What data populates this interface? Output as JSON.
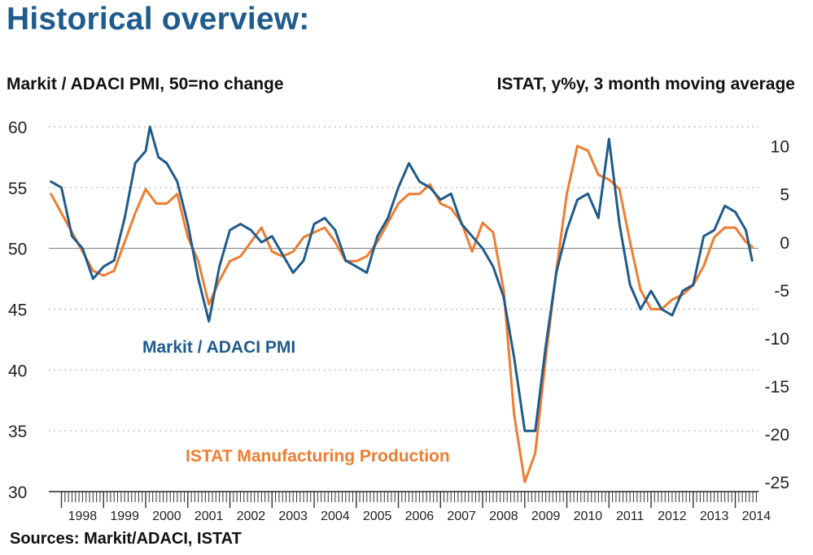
{
  "title": "Historical overview:",
  "source": "Sources: Markit/ADACI, ISTAT",
  "colors": {
    "pmi": "#1f5b8c",
    "istat": "#ee7d31",
    "title": "#1f5b8c"
  },
  "chart_data": {
    "type": "line",
    "left_axis": {
      "label": "Markit / ADACI PMI, 50=no change",
      "ylim": [
        30,
        60
      ],
      "ticks": [
        30,
        35,
        40,
        45,
        50,
        55,
        60
      ]
    },
    "right_axis": {
      "label": "ISTAT, y%y, 3 month moving average",
      "ylim": [
        -26,
        12
      ],
      "ticks": [
        10,
        5,
        0,
        -5,
        -10,
        -15,
        -20,
        -25
      ]
    },
    "x_tick_labels": [
      "1998",
      "1999",
      "2000",
      "2001",
      "2002",
      "2003",
      "2004",
      "2005",
      "2006",
      "2007",
      "2008",
      "2009",
      "2010",
      "2011",
      "2012",
      "2013",
      "2014"
    ],
    "grid": "horizontal dotted",
    "reference_line": {
      "axis": "left",
      "value": 50
    },
    "series": [
      {
        "name": "Markit / ADACI PMI",
        "axis": "left",
        "x": [
          1997.75,
          1998.0,
          1998.25,
          1998.5,
          1998.75,
          1999.0,
          1999.25,
          1999.5,
          1999.75,
          2000.0,
          2000.1,
          2000.3,
          2000.5,
          2000.75,
          2001.0,
          2001.25,
          2001.5,
          2001.75,
          2002.0,
          2002.25,
          2002.5,
          2002.75,
          2003.0,
          2003.25,
          2003.5,
          2003.75,
          2004.0,
          2004.25,
          2004.5,
          2004.75,
          2005.0,
          2005.25,
          2005.5,
          2005.75,
          2006.0,
          2006.25,
          2006.5,
          2006.75,
          2007.0,
          2007.25,
          2007.5,
          2007.75,
          2008.0,
          2008.25,
          2008.5,
          2008.75,
          2009.0,
          2009.25,
          2009.5,
          2009.75,
          2010.0,
          2010.25,
          2010.5,
          2010.75,
          2011.0,
          2011.25,
          2011.5,
          2011.75,
          2012.0,
          2012.25,
          2012.5,
          2012.75,
          2013.0,
          2013.25,
          2013.5,
          2013.75,
          2014.0,
          2014.25,
          2014.4
        ],
        "values": [
          55.5,
          55.0,
          51.0,
          50.0,
          47.5,
          48.5,
          49.0,
          52.5,
          57.0,
          58.0,
          60.0,
          57.5,
          57.0,
          55.5,
          52.0,
          47.5,
          44.0,
          48.5,
          51.5,
          52.0,
          51.5,
          50.5,
          51.0,
          49.5,
          48.0,
          49.0,
          52.0,
          52.5,
          51.5,
          49.0,
          48.5,
          48.0,
          51.0,
          52.5,
          55.0,
          57.0,
          55.5,
          55.0,
          54.0,
          54.5,
          52.0,
          51.0,
          50.0,
          48.5,
          46.0,
          41.0,
          35.0,
          35.0,
          42.0,
          48.0,
          51.5,
          54.0,
          54.5,
          52.5,
          59.0,
          52.0,
          47.0,
          45.0,
          46.5,
          45.0,
          44.5,
          46.5,
          47.0,
          51.0,
          51.5,
          53.5,
          53.0,
          51.5,
          49.0
        ]
      },
      {
        "name": "ISTAT Manufacturing Production",
        "axis": "right",
        "x": [
          1997.75,
          1998.0,
          1998.25,
          1998.5,
          1998.75,
          1999.0,
          1999.25,
          1999.5,
          1999.75,
          2000.0,
          2000.25,
          2000.5,
          2000.75,
          2001.0,
          2001.25,
          2001.5,
          2001.75,
          2002.0,
          2002.25,
          2002.5,
          2002.75,
          2003.0,
          2003.25,
          2003.5,
          2003.75,
          2004.0,
          2004.25,
          2004.5,
          2004.75,
          2005.0,
          2005.25,
          2005.5,
          2005.75,
          2006.0,
          2006.25,
          2006.5,
          2006.75,
          2007.0,
          2007.25,
          2007.5,
          2007.75,
          2008.0,
          2008.25,
          2008.5,
          2008.75,
          2009.0,
          2009.25,
          2009.5,
          2009.75,
          2010.0,
          2010.25,
          2010.5,
          2010.75,
          2011.0,
          2011.25,
          2011.5,
          2011.75,
          2012.0,
          2012.25,
          2012.5,
          2012.75,
          2013.0,
          2013.25,
          2013.5,
          2013.75,
          2014.0,
          2014.25,
          2014.4
        ],
        "values": [
          5.0,
          3.0,
          1.0,
          -1.0,
          -3.0,
          -3.5,
          -3.0,
          0.0,
          3.0,
          5.5,
          4.0,
          4.0,
          5.0,
          0.5,
          -2.0,
          -6.5,
          -4.0,
          -2.0,
          -1.5,
          0.0,
          1.5,
          -1.0,
          -1.5,
          -1.0,
          0.5,
          1.0,
          1.5,
          0.0,
          -2.0,
          -2.0,
          -1.5,
          0.0,
          2.0,
          4.0,
          5.0,
          5.0,
          6.0,
          4.0,
          3.5,
          2.0,
          -1.0,
          2.0,
          1.0,
          -5.0,
          -18.0,
          -25.0,
          -22.0,
          -12.0,
          -3.0,
          5.0,
          10.0,
          9.5,
          7.0,
          6.5,
          5.5,
          0.0,
          -5.0,
          -7.0,
          -7.0,
          -6.0,
          -5.5,
          -4.5,
          -2.5,
          0.5,
          1.5,
          1.5,
          0.0,
          -0.5
        ]
      }
    ],
    "annotations": [
      {
        "text": "Markit / ADACI PMI",
        "series": 0
      },
      {
        "text": "ISTAT Manufacturing Production",
        "series": 1
      }
    ]
  }
}
